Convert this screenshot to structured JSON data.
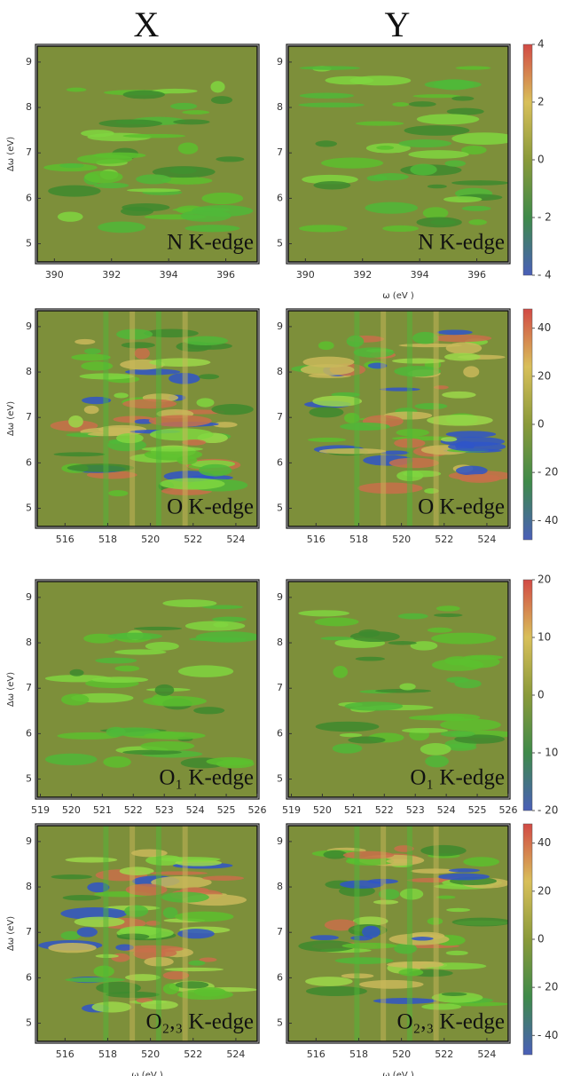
{
  "column_titles": [
    "X",
    "Y"
  ],
  "chart_data": [
    {
      "type": "contour",
      "panel_label": "N K-edge",
      "ylabel": "Δω (eV)",
      "xlim": [
        389.4,
        397.1
      ],
      "xticks": [
        390,
        392,
        394,
        396
      ],
      "ylim": [
        4.6,
        9.35
      ],
      "yticks": [
        5,
        6,
        7,
        8,
        9
      ]
    },
    {
      "type": "contour",
      "panel_label": "N K-edge",
      "xlabel": "ω (eV )",
      "xlim": [
        389.4,
        397.1
      ],
      "xticks": [
        390,
        392,
        394,
        396
      ],
      "ylim": [
        4.6,
        9.35
      ],
      "yticks": [
        5,
        6,
        7,
        8,
        9
      ],
      "colorbar": {
        "lim": [
          -4,
          4
        ],
        "ticks": [
          {
            "value": -4,
            "label": "- 4"
          },
          {
            "value": -2,
            "label": "- 2"
          },
          0,
          2,
          4
        ]
      }
    },
    {
      "type": "contour",
      "panel_label": "O K-edge",
      "ylabel": "Δω (eV)",
      "xlim": [
        514.7,
        525
      ],
      "xticks": [
        516,
        518,
        520,
        522,
        524
      ],
      "ylim": [
        4.6,
        9.35
      ],
      "yticks": [
        5,
        6,
        7,
        8,
        9
      ]
    },
    {
      "type": "contour",
      "panel_label": "O K-edge",
      "xlim": [
        514.7,
        525
      ],
      "xticks": [
        516,
        518,
        520,
        522,
        524
      ],
      "ylim": [
        4.6,
        9.35
      ],
      "yticks": [
        5,
        6,
        7,
        8,
        9
      ],
      "colorbar": {
        "lim": [
          -48,
          48
        ],
        "ticks": [
          {
            "value": -40,
            "label": "- 40"
          },
          {
            "value": -20,
            "label": "- 20"
          },
          0,
          20,
          40
        ]
      }
    },
    {
      "type": "contour",
      "panel_label": "O₁ K-edge",
      "ylabel": "Δω (eV)",
      "xlim": [
        518.9,
        526
      ],
      "xticks": [
        519,
        520,
        521,
        522,
        523,
        524,
        525,
        526
      ],
      "ylim": [
        4.6,
        9.35
      ],
      "yticks": [
        5,
        6,
        7,
        8,
        9
      ]
    },
    {
      "type": "contour",
      "panel_label": "O₁ K-edge",
      "xlim": [
        518.9,
        526
      ],
      "xticks": [
        519,
        520,
        521,
        522,
        523,
        524,
        525,
        526
      ],
      "ylim": [
        4.6,
        9.35
      ],
      "yticks": [
        5,
        6,
        7,
        8,
        9
      ],
      "colorbar": {
        "lim": [
          -20,
          20
        ],
        "ticks": [
          {
            "value": -20,
            "label": "- 20"
          },
          {
            "value": -10,
            "label": "- 10"
          },
          0,
          10,
          20
        ]
      }
    },
    {
      "type": "contour",
      "panel_label": "O₂,₃ K-edge",
      "ylabel": "Δω (eV)",
      "xlabel": "ω (eV )",
      "xlim": [
        514.7,
        525
      ],
      "xticks": [
        516,
        518,
        520,
        522,
        524
      ],
      "ylim": [
        4.6,
        9.35
      ],
      "yticks": [
        5,
        6,
        7,
        8,
        9
      ]
    },
    {
      "type": "contour",
      "panel_label": "O₂,₃ K-edge",
      "xlabel": "ω (eV )",
      "xlim": [
        514.7,
        525
      ],
      "xticks": [
        516,
        518,
        520,
        522,
        524
      ],
      "ylim": [
        4.6,
        9.35
      ],
      "yticks": [
        5,
        6,
        7,
        8,
        9
      ],
      "colorbar": {
        "lim": [
          -48,
          48
        ],
        "ticks": [
          {
            "value": -40,
            "label": "- 40"
          },
          {
            "value": -20,
            "label": "- 20"
          },
          0,
          20,
          40
        ]
      }
    }
  ]
}
